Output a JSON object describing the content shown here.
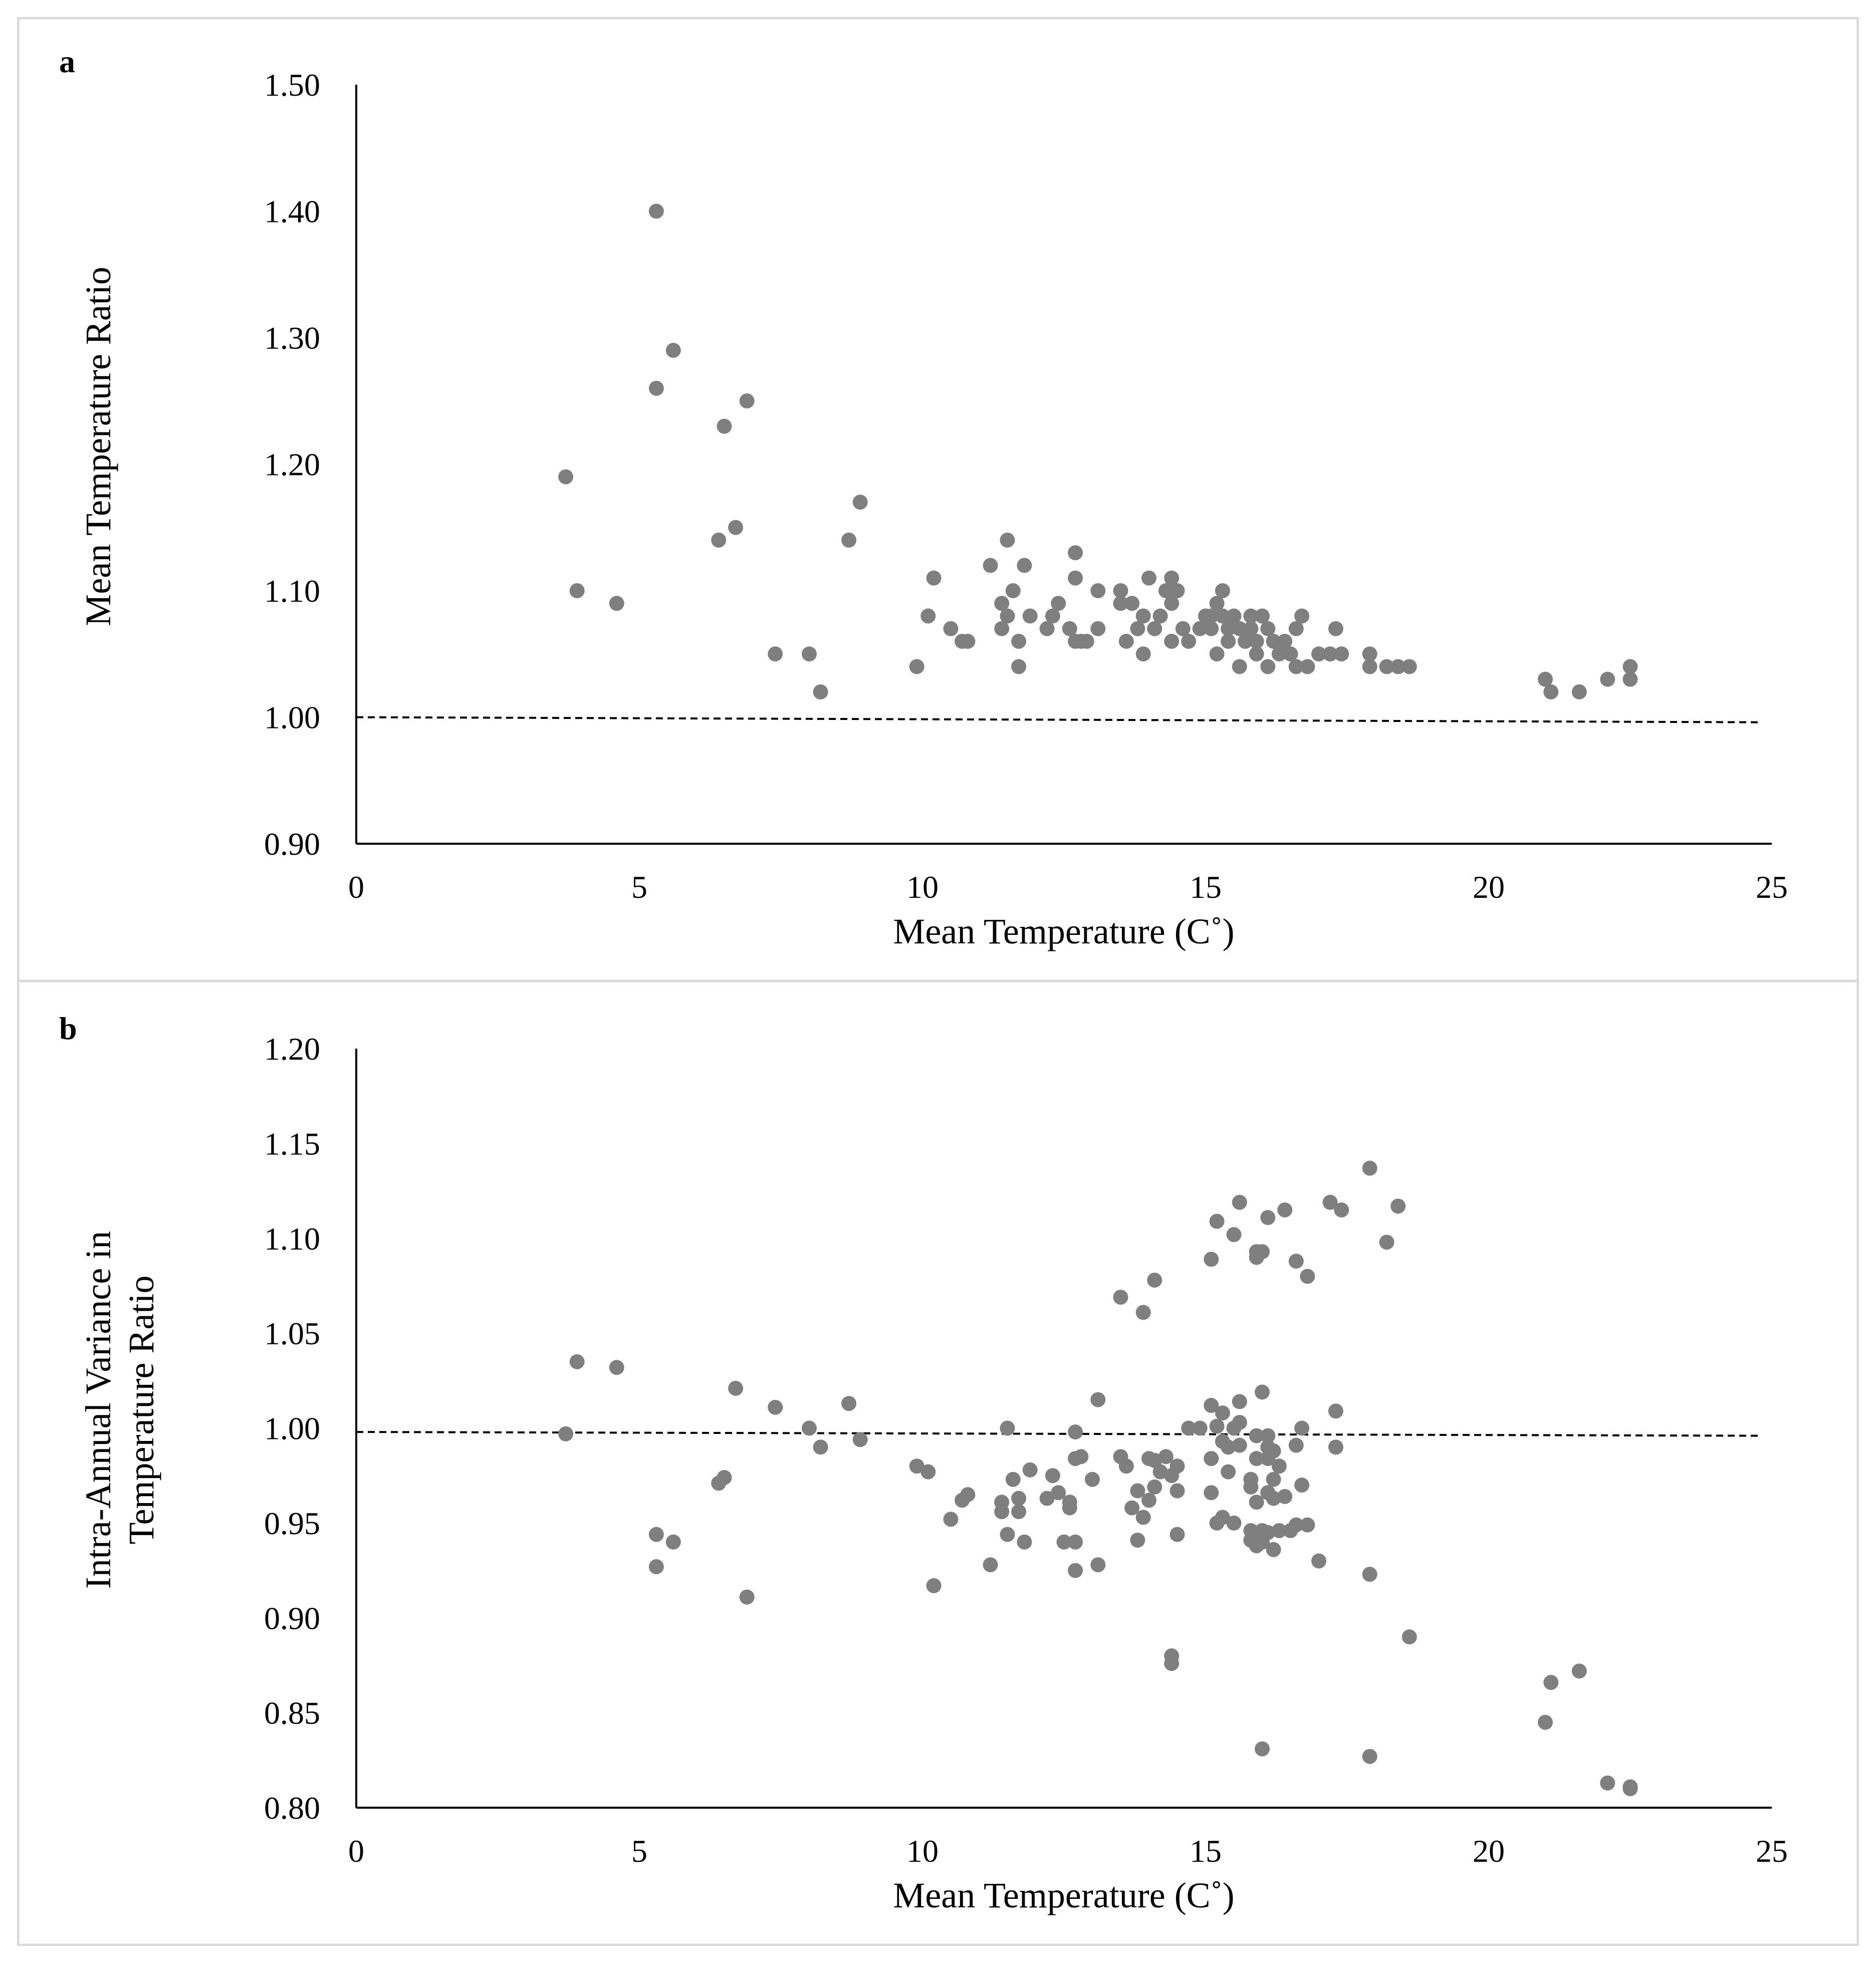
{
  "chart_data": [
    {
      "type": "scatter",
      "panel_label": "a",
      "xlabel": "Mean Temperature (C˚)",
      "ylabel": "Mean Temperature Ratio",
      "xlim": [
        0,
        25
      ],
      "ylim": [
        0.9,
        1.5
      ],
      "x_ticks": [
        "0",
        "5",
        "10",
        "15",
        "20",
        "25"
      ],
      "y_ticks": [
        "0.90",
        "1.00",
        "1.10",
        "1.20",
        "1.30",
        "1.40",
        "1.50"
      ],
      "reference_line": {
        "y_start": 1.0,
        "y_end": 0.996,
        "style": "dashed"
      },
      "marker_color": "#7f7f7f",
      "points": [
        [
          3.7,
          1.19
        ],
        [
          3.9,
          1.1
        ],
        [
          4.6,
          1.09
        ],
        [
          5.3,
          1.4
        ],
        [
          5.3,
          1.26
        ],
        [
          5.6,
          1.29
        ],
        [
          6.4,
          1.14
        ],
        [
          6.5,
          1.23
        ],
        [
          6.7,
          1.15
        ],
        [
          6.9,
          1.25
        ],
        [
          7.4,
          1.05
        ],
        [
          8.0,
          1.05
        ],
        [
          8.2,
          1.02
        ],
        [
          8.7,
          1.14
        ],
        [
          8.9,
          1.17
        ],
        [
          9.9,
          1.04
        ],
        [
          10.1,
          1.08
        ],
        [
          10.2,
          1.11
        ],
        [
          10.5,
          1.07
        ],
        [
          10.7,
          1.06
        ],
        [
          10.8,
          1.06
        ],
        [
          11.2,
          1.12
        ],
        [
          11.4,
          1.09
        ],
        [
          11.4,
          1.07
        ],
        [
          11.5,
          1.14
        ],
        [
          11.6,
          1.1
        ],
        [
          11.5,
          1.08
        ],
        [
          11.7,
          1.06
        ],
        [
          11.7,
          1.04
        ],
        [
          11.8,
          1.12
        ],
        [
          11.9,
          1.08
        ],
        [
          12.2,
          1.07
        ],
        [
          12.3,
          1.08
        ],
        [
          12.4,
          1.09
        ],
        [
          12.6,
          1.07
        ],
        [
          12.7,
          1.13
        ],
        [
          12.7,
          1.11
        ],
        [
          12.7,
          1.06
        ],
        [
          12.8,
          1.06
        ],
        [
          12.9,
          1.06
        ],
        [
          13.1,
          1.07
        ],
        [
          13.1,
          1.1
        ],
        [
          13.5,
          1.09
        ],
        [
          13.5,
          1.1
        ],
        [
          13.6,
          1.06
        ],
        [
          13.7,
          1.09
        ],
        [
          13.8,
          1.07
        ],
        [
          13.9,
          1.08
        ],
        [
          13.9,
          1.05
        ],
        [
          14.0,
          1.11
        ],
        [
          14.1,
          1.07
        ],
        [
          14.2,
          1.08
        ],
        [
          14.3,
          1.1
        ],
        [
          14.4,
          1.11
        ],
        [
          14.4,
          1.09
        ],
        [
          14.4,
          1.06
        ],
        [
          14.5,
          1.1
        ],
        [
          14.6,
          1.07
        ],
        [
          14.7,
          1.06
        ],
        [
          14.9,
          1.07
        ],
        [
          15.0,
          1.08
        ],
        [
          15.1,
          1.07
        ],
        [
          15.1,
          1.08
        ],
        [
          15.2,
          1.05
        ],
        [
          15.2,
          1.09
        ],
        [
          15.3,
          1.1
        ],
        [
          15.3,
          1.08
        ],
        [
          15.4,
          1.06
        ],
        [
          15.4,
          1.07
        ],
        [
          15.5,
          1.08
        ],
        [
          15.6,
          1.07
        ],
        [
          15.6,
          1.04
        ],
        [
          15.7,
          1.06
        ],
        [
          15.8,
          1.08
        ],
        [
          15.8,
          1.07
        ],
        [
          15.9,
          1.06
        ],
        [
          15.9,
          1.05
        ],
        [
          16.0,
          1.08
        ],
        [
          16.1,
          1.07
        ],
        [
          16.1,
          1.04
        ],
        [
          16.2,
          1.06
        ],
        [
          16.3,
          1.05
        ],
        [
          16.4,
          1.06
        ],
        [
          16.5,
          1.05
        ],
        [
          16.6,
          1.07
        ],
        [
          16.6,
          1.04
        ],
        [
          16.7,
          1.08
        ],
        [
          16.8,
          1.04
        ],
        [
          17.0,
          1.05
        ],
        [
          17.2,
          1.05
        ],
        [
          17.3,
          1.07
        ],
        [
          17.4,
          1.05
        ],
        [
          17.9,
          1.05
        ],
        [
          17.9,
          1.04
        ],
        [
          18.2,
          1.04
        ],
        [
          18.4,
          1.04
        ],
        [
          18.6,
          1.04
        ],
        [
          21.0,
          1.03
        ],
        [
          21.1,
          1.02
        ],
        [
          21.6,
          1.02
        ],
        [
          22.1,
          1.03
        ],
        [
          22.5,
          1.03
        ],
        [
          22.5,
          1.04
        ]
      ]
    },
    {
      "type": "scatter",
      "panel_label": "b",
      "xlabel": "Mean Temperature (C˚)",
      "ylabel_lines": [
        "Intra-Annual Variance in",
        "Temperature Ratio"
      ],
      "xlim": [
        0,
        25
      ],
      "ylim": [
        0.8,
        1.2
      ],
      "x_ticks": [
        "0",
        "5",
        "10",
        "15",
        "20",
        "25"
      ],
      "y_ticks": [
        "0.80",
        "0.85",
        "0.90",
        "0.95",
        "1.00",
        "1.05",
        "1.10",
        "1.15",
        "1.20"
      ],
      "reference_line": {
        "y_start": 0.998,
        "y_end": 0.996,
        "style": "dashed"
      },
      "marker_color": "#7f7f7f",
      "points": [
        [
          3.7,
          0.997
        ],
        [
          3.9,
          1.035
        ],
        [
          4.6,
          1.032
        ],
        [
          5.3,
          0.944
        ],
        [
          5.3,
          0.927
        ],
        [
          5.6,
          0.94
        ],
        [
          6.4,
          0.971
        ],
        [
          6.5,
          0.974
        ],
        [
          6.7,
          1.021
        ],
        [
          6.9,
          0.911
        ],
        [
          7.4,
          1.011
        ],
        [
          8.0,
          1.0
        ],
        [
          8.2,
          0.99
        ],
        [
          8.7,
          1.013
        ],
        [
          8.9,
          0.994
        ],
        [
          9.9,
          0.98
        ],
        [
          10.1,
          0.977
        ],
        [
          10.2,
          0.917
        ],
        [
          10.5,
          0.952
        ],
        [
          10.7,
          0.962
        ],
        [
          10.8,
          0.965
        ],
        [
          11.2,
          0.928
        ],
        [
          11.4,
          0.961
        ],
        [
          11.4,
          0.956
        ],
        [
          11.5,
          1.0
        ],
        [
          11.5,
          0.944
        ],
        [
          11.6,
          0.973
        ],
        [
          11.7,
          0.963
        ],
        [
          11.7,
          0.956
        ],
        [
          11.8,
          0.94
        ],
        [
          11.9,
          0.978
        ],
        [
          12.2,
          0.963
        ],
        [
          12.3,
          0.975
        ],
        [
          12.4,
          0.966
        ],
        [
          12.5,
          0.94
        ],
        [
          12.6,
          0.961
        ],
        [
          12.6,
          0.958
        ],
        [
          12.7,
          0.998
        ],
        [
          12.7,
          0.984
        ],
        [
          12.7,
          0.925
        ],
        [
          12.7,
          0.94
        ],
        [
          12.8,
          0.985
        ],
        [
          13.0,
          0.973
        ],
        [
          13.1,
          1.015
        ],
        [
          13.1,
          0.928
        ],
        [
          13.5,
          1.069
        ],
        [
          13.5,
          0.985
        ],
        [
          13.6,
          0.98
        ],
        [
          13.7,
          0.958
        ],
        [
          13.8,
          0.941
        ],
        [
          13.8,
          0.967
        ],
        [
          13.9,
          1.061
        ],
        [
          13.9,
          0.953
        ],
        [
          14.0,
          0.984
        ],
        [
          14.0,
          0.962
        ],
        [
          14.1,
          1.078
        ],
        [
          14.1,
          0.983
        ],
        [
          14.1,
          0.969
        ],
        [
          14.2,
          0.977
        ],
        [
          14.3,
          0.985
        ],
        [
          14.4,
          0.88
        ],
        [
          14.4,
          0.876
        ],
        [
          14.4,
          0.975
        ],
        [
          14.5,
          0.98
        ],
        [
          14.5,
          0.967
        ],
        [
          14.5,
          0.944
        ],
        [
          14.7,
          1.0
        ],
        [
          14.9,
          1.0
        ],
        [
          15.1,
          1.089
        ],
        [
          15.1,
          1.012
        ],
        [
          15.1,
          0.984
        ],
        [
          15.1,
          0.966
        ],
        [
          15.2,
          1.109
        ],
        [
          15.2,
          1.001
        ],
        [
          15.2,
          0.95
        ],
        [
          15.3,
          1.008
        ],
        [
          15.3,
          0.993
        ],
        [
          15.3,
          0.953
        ],
        [
          15.4,
          0.99
        ],
        [
          15.4,
          0.977
        ],
        [
          15.5,
          1.102
        ],
        [
          15.5,
          1.0
        ],
        [
          15.5,
          0.95
        ],
        [
          15.6,
          1.119
        ],
        [
          15.6,
          1.014
        ],
        [
          15.6,
          1.003
        ],
        [
          15.6,
          0.991
        ],
        [
          15.8,
          0.973
        ],
        [
          15.8,
          0.969
        ],
        [
          15.8,
          0.946
        ],
        [
          15.8,
          0.941
        ],
        [
          15.9,
          1.093
        ],
        [
          15.9,
          1.09
        ],
        [
          15.9,
          0.996
        ],
        [
          15.9,
          0.984
        ],
        [
          15.9,
          0.961
        ],
        [
          15.9,
          0.938
        ],
        [
          16.0,
          1.093
        ],
        [
          16.0,
          1.019
        ],
        [
          16.0,
          0.831
        ],
        [
          16.0,
          0.946
        ],
        [
          16.0,
          0.94
        ],
        [
          16.1,
          1.111
        ],
        [
          16.1,
          0.996
        ],
        [
          16.1,
          0.99
        ],
        [
          16.1,
          0.984
        ],
        [
          16.1,
          0.966
        ],
        [
          16.1,
          0.945
        ],
        [
          16.2,
          0.988
        ],
        [
          16.2,
          0.973
        ],
        [
          16.2,
          0.963
        ],
        [
          16.2,
          0.936
        ],
        [
          16.3,
          0.98
        ],
        [
          16.3,
          0.946
        ],
        [
          16.4,
          1.115
        ],
        [
          16.4,
          0.964
        ],
        [
          16.5,
          0.946
        ],
        [
          16.6,
          1.088
        ],
        [
          16.6,
          0.991
        ],
        [
          16.6,
          0.949
        ],
        [
          16.7,
          1.0
        ],
        [
          16.7,
          0.97
        ],
        [
          16.8,
          1.08
        ],
        [
          16.8,
          0.949
        ],
        [
          17.0,
          0.93
        ],
        [
          17.2,
          1.119
        ],
        [
          17.3,
          1.009
        ],
        [
          17.3,
          0.99
        ],
        [
          17.4,
          1.115
        ],
        [
          17.9,
          1.137
        ],
        [
          17.9,
          0.923
        ],
        [
          17.9,
          0.827
        ],
        [
          18.2,
          1.098
        ],
        [
          18.4,
          1.117
        ],
        [
          18.6,
          0.89
        ],
        [
          21.0,
          0.845
        ],
        [
          21.1,
          0.866
        ],
        [
          21.6,
          0.872
        ],
        [
          22.1,
          0.813
        ],
        [
          22.5,
          0.811
        ],
        [
          22.5,
          0.81
        ]
      ]
    }
  ]
}
